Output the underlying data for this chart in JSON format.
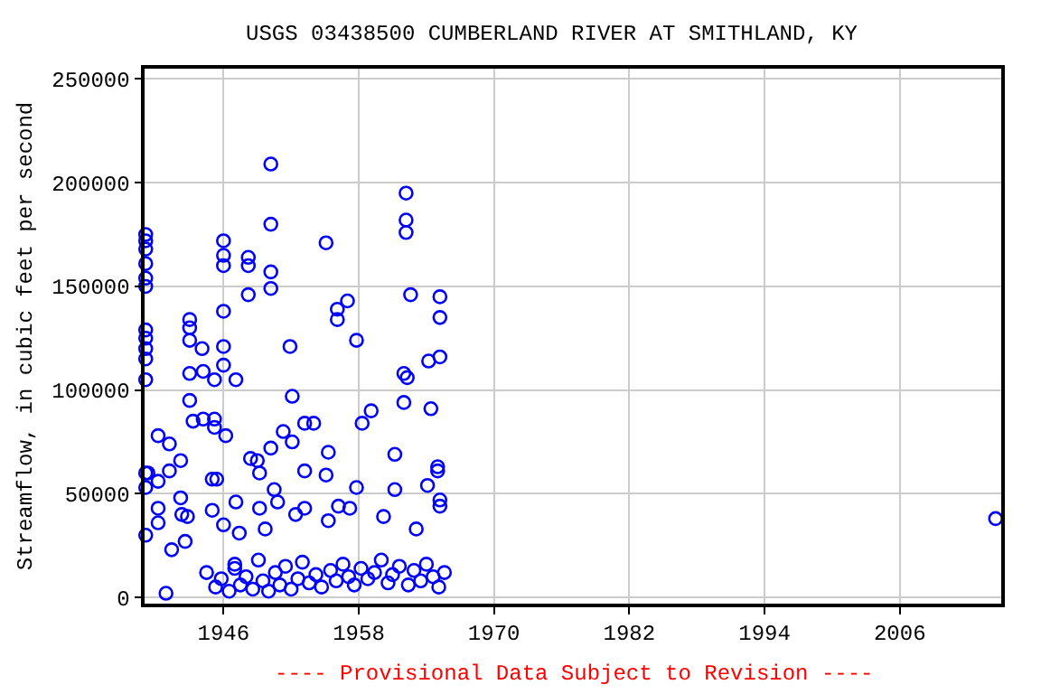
{
  "chart_data": {
    "type": "scatter",
    "title": "USGS 03438500 CUMBERLAND RIVER AT SMITHLAND, KY",
    "ylabel": "Streamflow, in cubic feet per second",
    "annotations": [
      "---- Provisional Data Subject to Revision ----"
    ],
    "series": [
      {
        "color": "#0000ff",
        "x": [
          1939.1,
          1939.1,
          1939.1,
          1939.1,
          1939.1,
          1939.1,
          1939.1,
          1939.1,
          1939.1,
          1939.1,
          1939.1,
          1939.1,
          1939.1,
          1939.1,
          1939.3,
          1940.2,
          1940.2,
          1940.2,
          1940.2,
          1940.9,
          1941.2,
          1941.2,
          1941.4,
          1942.2,
          1942.2,
          1942.3,
          1942.6,
          1942.8,
          1943.0,
          1943.0,
          1943.0,
          1943.0,
          1943.0,
          1943.3,
          1944.1,
          1944.2,
          1944.2,
          1945.0,
          1945.0,
          1945.2,
          1945.2,
          1945.2,
          1945.4,
          1946.0,
          1946.0,
          1946.0,
          1946.0,
          1946.0,
          1946.0,
          1946.0,
          1946.2,
          1947.0,
          1947.1,
          1947.1,
          1947.4,
          1948.2,
          1948.2,
          1948.2,
          1948.4,
          1949.0,
          1949.2,
          1949.2,
          1949.7,
          1950.2,
          1950.2,
          1950.2,
          1950.2,
          1950.2,
          1950.5,
          1950.8,
          1951.3,
          1951.9,
          1952.1,
          1952.1,
          1952.4,
          1953.2,
          1953.2,
          1953.2,
          1954.0,
          1955.1,
          1955.1,
          1955.3,
          1955.3,
          1956.1,
          1956.1,
          1956.2,
          1957.0,
          1957.2,
          1957.8,
          1957.8,
          1958.3,
          1959.1,
          1960.2,
          1961.2,
          1961.2,
          1962.0,
          1962.0,
          1962.2,
          1962.2,
          1962.2,
          1962.3,
          1962.6,
          1963.1,
          1964.1,
          1964.2,
          1964.4,
          1965.0,
          1965.0,
          1965.2,
          1965.2,
          1965.2,
          1965.2,
          1965.2,
          1944.5,
          1945.3,
          1945.8,
          1946.5,
          1947.0,
          1947.5,
          1948.0,
          1948.6,
          1949.1,
          1949.5,
          1950.0,
          1950.6,
          1951.0,
          1951.5,
          1952.0,
          1952.6,
          1953.0,
          1953.6,
          1954.2,
          1954.7,
          1955.5,
          1956.0,
          1956.6,
          1957.1,
          1957.6,
          1958.2,
          1958.8,
          1959.4,
          1960.0,
          1960.6,
          1961.0,
          1961.6,
          1962.4,
          1962.9,
          1963.5,
          1964.0,
          1964.6,
          1965.1,
          1965.6,
          2014.5
        ],
        "values": [
          175000,
          172000,
          168000,
          161000,
          154000,
          150000,
          129000,
          125000,
          120000,
          115000,
          105000,
          60000,
          53000,
          30000,
          60000,
          78000,
          56000,
          43000,
          36000,
          2000,
          74000,
          61000,
          23000,
          66000,
          48000,
          40000,
          27000,
          39000,
          134000,
          130000,
          124000,
          108000,
          95000,
          85000,
          120000,
          109000,
          86000,
          57000,
          42000,
          105000,
          86000,
          82000,
          57000,
          172000,
          165000,
          160000,
          138000,
          121000,
          112000,
          35000,
          78000,
          16000,
          105000,
          46000,
          31000,
          164000,
          160000,
          146000,
          67000,
          66000,
          60000,
          43000,
          33000,
          209000,
          180000,
          157000,
          149000,
          72000,
          52000,
          46000,
          80000,
          121000,
          97000,
          75000,
          40000,
          61000,
          43000,
          84000,
          84000,
          171000,
          59000,
          70000,
          37000,
          139000,
          134000,
          44000,
          143000,
          43000,
          124000,
          53000,
          84000,
          90000,
          39000,
          69000,
          52000,
          108000,
          94000,
          195000,
          182000,
          176000,
          106000,
          146000,
          33000,
          54000,
          114000,
          91000,
          63000,
          61000,
          145000,
          135000,
          116000,
          47000,
          44000,
          12000,
          5000,
          9000,
          3000,
          14000,
          6000,
          10000,
          4000,
          18000,
          8000,
          3000,
          12000,
          6000,
          15000,
          4000,
          9000,
          17000,
          7000,
          11000,
          5000,
          13000,
          8000,
          16000,
          10000,
          6000,
          14000,
          9000,
          12000,
          18000,
          7000,
          11000,
          15000,
          6000,
          13000,
          8000,
          16000,
          10000,
          5000,
          12000,
          38000
        ]
      }
    ],
    "xlim": [
      1939,
      2015
    ],
    "ylim": [
      -3000,
      255000
    ],
    "xticks": [
      1946,
      1958,
      1970,
      1982,
      1994,
      2006
    ],
    "yticks": [
      0,
      50000,
      100000,
      150000,
      200000,
      250000
    ],
    "grid": true,
    "marker": "circle"
  }
}
